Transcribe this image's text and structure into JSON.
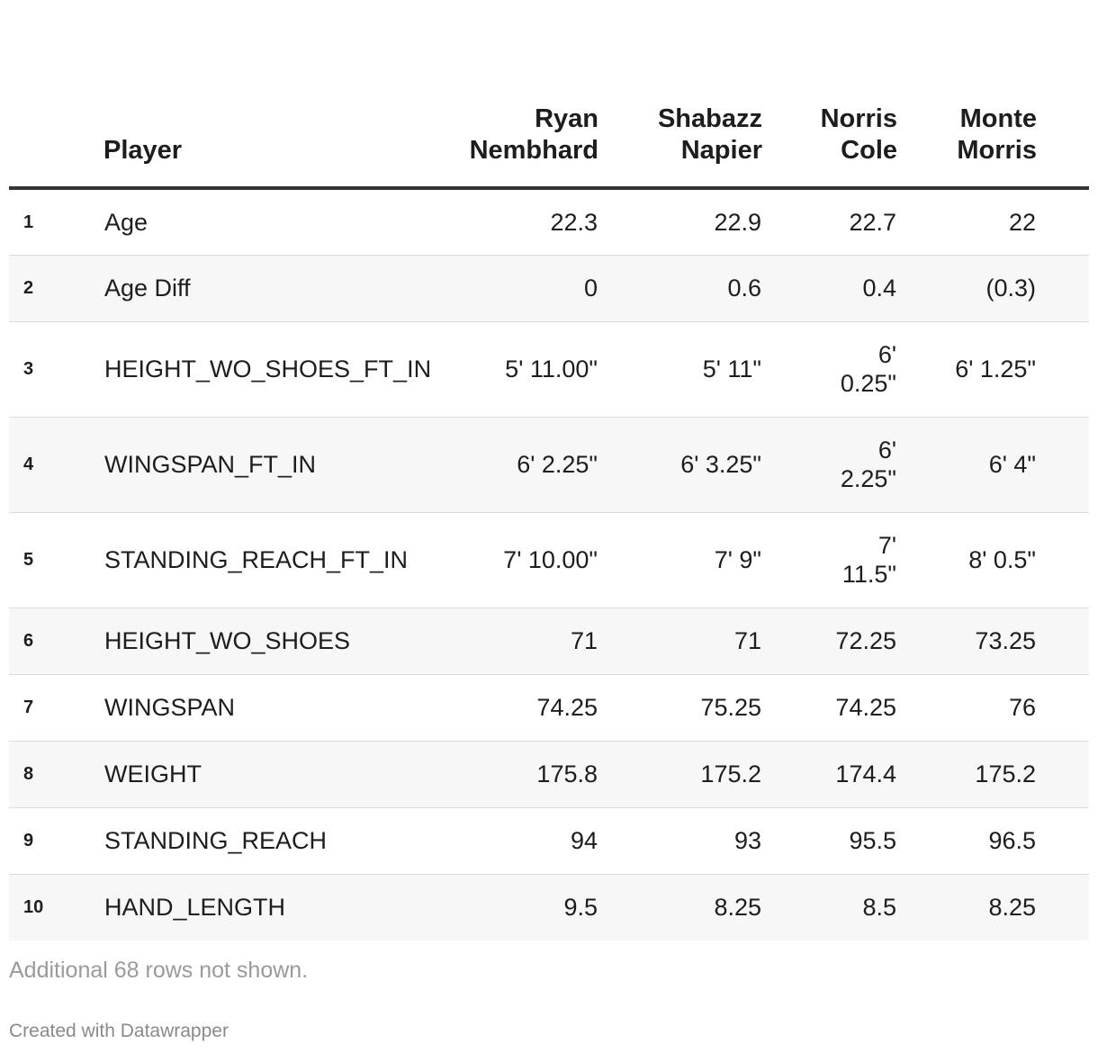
{
  "chart_data": {
    "type": "table",
    "columns": [
      "",
      "Player",
      "Ryan Nembhard",
      "Shabazz Napier",
      "Norris Cole",
      "Monte Morris"
    ],
    "header_lines": [
      [
        "Ryan",
        "Nembhard"
      ],
      [
        "Shabazz",
        "Napier"
      ],
      [
        "Norris",
        "Cole"
      ],
      [
        "Monte",
        "Morris"
      ]
    ],
    "rows": [
      {
        "idx": "1",
        "name": "Age",
        "values": [
          "22.3",
          "22.9",
          "22.7",
          "22"
        ]
      },
      {
        "idx": "2",
        "name": "Age Diff",
        "values": [
          "0",
          "0.6",
          "0.4",
          "(0.3)"
        ]
      },
      {
        "idx": "3",
        "name": "HEIGHT_WO_SHOES_FT_IN",
        "values": [
          "5' 11.00\"",
          "5' 11\"",
          "6' 0.25\"",
          "6' 1.25\""
        ]
      },
      {
        "idx": "4",
        "name": "WINGSPAN_FT_IN",
        "values": [
          "6' 2.25\"",
          "6' 3.25\"",
          "6' 2.25\"",
          "6' 4\""
        ]
      },
      {
        "idx": "5",
        "name": "STANDING_REACH_FT_IN",
        "values": [
          "7' 10.00\"",
          "7' 9\"",
          "7' 11.5\"",
          "8' 0.5\""
        ]
      },
      {
        "idx": "6",
        "name": "HEIGHT_WO_SHOES",
        "values": [
          "71",
          "71",
          "72.25",
          "73.25"
        ]
      },
      {
        "idx": "7",
        "name": "WINGSPAN",
        "values": [
          "74.25",
          "75.25",
          "74.25",
          "76"
        ]
      },
      {
        "idx": "8",
        "name": "WEIGHT",
        "values": [
          "175.8",
          "175.2",
          "174.4",
          "175.2"
        ]
      },
      {
        "idx": "9",
        "name": "STANDING_REACH",
        "values": [
          "94",
          "93",
          "95.5",
          "96.5"
        ]
      },
      {
        "idx": "10",
        "name": "HAND_LENGTH",
        "values": [
          "9.5",
          "8.25",
          "8.5",
          "8.25"
        ]
      }
    ],
    "notes": "Additional 68 rows not shown.",
    "credit": "Created with Datawrapper"
  }
}
